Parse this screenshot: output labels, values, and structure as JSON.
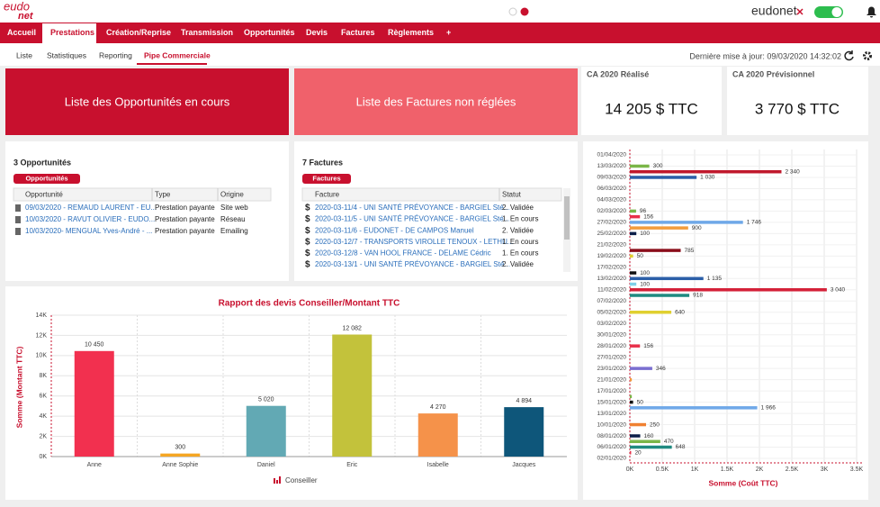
{
  "header": {
    "logo_top": "eudo",
    "logo_bottom": "net",
    "brand": "eudonet"
  },
  "nav": {
    "items": [
      "Accueil",
      "Prestations",
      "Création/Reprise",
      "Transmission",
      "Opportunités",
      "Devis",
      "Factures",
      "Règlements",
      "+"
    ],
    "active": 1
  },
  "subnav": {
    "items": [
      "Liste",
      "Statistiques",
      "Reporting",
      "Pipe Commerciale"
    ],
    "active": 3,
    "updated": "Dernière mise à jour: 09/03/2020 14:32:02"
  },
  "tiles": [
    "Liste des Opportunités en cours",
    "Liste des Factures non réglées"
  ],
  "kpis": [
    {
      "label": "CA 2020 Réalisé",
      "value": "14 205 $ TTC"
    },
    {
      "label": "CA 2020 Prévisionnel",
      "value": "3 770 $ TTC"
    }
  ],
  "opportunities": {
    "title": "3 Opportunités",
    "button": "Opportunités",
    "columns": [
      "Opportunité",
      "Type",
      "Origine"
    ],
    "rows": [
      [
        "09/03/2020 - REMAUD LAURENT - EU...",
        "Prestation payante",
        "Site web"
      ],
      [
        "10/03/2020 - RAVUT OLIVIER - EUDO...",
        "Prestation payante",
        "Réseau"
      ],
      [
        "10/03/2020- MENGUAL Yves-André - ...",
        "Prestation payante",
        "Emailing"
      ]
    ]
  },
  "invoices": {
    "title": "7 Factures",
    "button": "Factures",
    "row_icon": "$",
    "columns": [
      "Facture",
      "Statut"
    ],
    "rows": [
      [
        "2020-03-11/4 - UNI SANTÉ PRÉVOYANCE - BARGIEL Sté...",
        "2. Validée"
      ],
      [
        "2020-03-11/5 - UNI SANTÉ PRÉVOYANCE - BARGIEL Sté...",
        "1. En cours"
      ],
      [
        "2020-03-11/6 - EUDONET - DE CAMPOS Manuel",
        "2. Validée"
      ],
      [
        "2020-03-12/7 - TRANSPORTS VIROLLE TENOUX - LETHU...",
        "1. En cours"
      ],
      [
        "2020-03-12/8 - VAN HOOL FRANCE - DELAME Cédric",
        "1. En cours"
      ],
      [
        "2020-03-13/1 - UNI SANTÉ PRÉVOYANCE - BARGIEL Sté...",
        "2. Validée"
      ]
    ]
  },
  "chart_data": [
    {
      "type": "bar",
      "title": "Rapport des devis Conseiller/Montant TTC",
      "y_label": "Somme (Montant TTC)",
      "legend": "Conseiller",
      "categories": [
        "Anne",
        "Anne Sophie",
        "Daniel",
        "Eric",
        "Isabelle",
        "Jacques"
      ],
      "values": [
        10450,
        300,
        5020,
        12082,
        4270,
        4894
      ],
      "value_labels": [
        "10 450",
        "300",
        "5 020",
        "12 082",
        "4 270",
        "4 894"
      ],
      "colors": [
        "#f2304f",
        "#f5a623",
        "#62a9b4",
        "#c3c23b",
        "#f5924a",
        "#0e567a"
      ],
      "ylim": [
        0,
        14000
      ],
      "yticks": [
        {
          "value": 0,
          "label": "0K"
        },
        {
          "value": 2000,
          "label": "2K"
        },
        {
          "value": 4000,
          "label": "4K"
        },
        {
          "value": 6000,
          "label": "6K"
        },
        {
          "value": 8000,
          "label": "8K"
        },
        {
          "value": 10000,
          "label": "10K"
        },
        {
          "value": 12000,
          "label": "12K"
        },
        {
          "value": 14000,
          "label": "14K"
        }
      ],
      "grid": true
    },
    {
      "type": "hbar",
      "x_label": "Somme (Coût TTC)",
      "categories": [
        "01/04/2020",
        null,
        "13/03/2020",
        null,
        "09/03/2020",
        null,
        "06/03/2020",
        null,
        "04/03/2020",
        null,
        "02/03/2020",
        null,
        "27/02/2020",
        null,
        "25/02/2020",
        null,
        "21/02/2020",
        null,
        "19/02/2020",
        null,
        "17/02/2020",
        null,
        "13/02/2020",
        null,
        "11/02/2020",
        null,
        "07/02/2020",
        null,
        "05/02/2020",
        null,
        "03/02/2020",
        null,
        "30/01/2020",
        null,
        "28/01/2020",
        null,
        "27/01/2020",
        null,
        "23/01/2020",
        null,
        "21/01/2020",
        null,
        "17/01/2020",
        null,
        "15/01/2020",
        null,
        "13/01/2020",
        null,
        "10/01/2020",
        null,
        "08/01/2020",
        null,
        "06/01/2020",
        null,
        "02/01/2020"
      ],
      "values": [
        null,
        null,
        300,
        2340,
        1030,
        null,
        null,
        null,
        null,
        null,
        96,
        156,
        1746,
        900,
        100,
        null,
        null,
        785,
        50,
        null,
        null,
        100,
        1135,
        100,
        3040,
        918,
        null,
        null,
        640,
        null,
        null,
        null,
        null,
        null,
        156,
        null,
        null,
        null,
        346,
        null,
        30,
        null,
        null,
        30,
        50,
        1966,
        null,
        null,
        250,
        null,
        160,
        470,
        648,
        20,
        null
      ],
      "value_labels": [
        null,
        null,
        "300",
        "2 340",
        "1 030",
        null,
        null,
        null,
        null,
        null,
        "96",
        "156",
        "1 746",
        "900",
        "100",
        null,
        null,
        "785",
        "50",
        null,
        null,
        "100",
        "1 135",
        "100",
        "3 040",
        "918",
        null,
        null,
        "640",
        null,
        null,
        null,
        null,
        null,
        "156",
        null,
        null,
        null,
        "346",
        null,
        null,
        null,
        null,
        null,
        "50",
        "1 966",
        null,
        null,
        "250",
        null,
        "160",
        "470",
        "648",
        "20",
        null
      ],
      "colors": [
        null,
        null,
        "#7ab648",
        "#c0182c",
        "#2b5fa8",
        null,
        null,
        null,
        null,
        null,
        "#7ab648",
        "#e8304a",
        "#6fa8e8",
        "#f39c3c",
        "#0d1f4a",
        null,
        null,
        "#8a0d1a",
        "#e0d030",
        null,
        null,
        "#111111",
        "#2b5fa8",
        "#7fd0e8",
        "#d42038",
        "#1f8a80",
        null,
        null,
        "#e0d030",
        null,
        null,
        null,
        null,
        null,
        "#e8304a",
        null,
        null,
        null,
        "#7a6fd0",
        null,
        "#f39c3c",
        null,
        null,
        "#7ab648",
        "#111111",
        "#6fa8e8",
        null,
        null,
        "#f08030",
        null,
        "#0d1f4a",
        "#7ab648",
        "#1f8a80",
        "#e8304a",
        null
      ],
      "xlim": [
        0,
        3500
      ],
      "xticks": [
        {
          "value": 0,
          "label": "0K"
        },
        {
          "value": 500,
          "label": "0.5K"
        },
        {
          "value": 1000,
          "label": "1K"
        },
        {
          "value": 1500,
          "label": "1.5K"
        },
        {
          "value": 2000,
          "label": "2K"
        },
        {
          "value": 2500,
          "label": "2.5K"
        },
        {
          "value": 3000,
          "label": "3K"
        },
        {
          "value": 3500,
          "label": "3.5K"
        }
      ],
      "grid": true
    }
  ]
}
